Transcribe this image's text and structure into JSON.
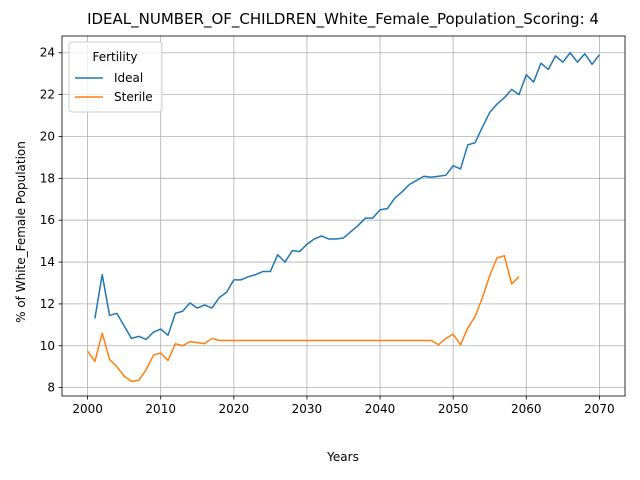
{
  "chart_data": {
    "type": "line",
    "title": "IDEAL_NUMBER_OF_CHILDREN_White_Female_Population_Scoring: 4",
    "xlabel": "Years",
    "ylabel": "% of White_Female Population",
    "xlim": [
      1996.5,
      2073.5
    ],
    "ylim": [
      7.6,
      24.8
    ],
    "xticks": [
      2000,
      2010,
      2020,
      2030,
      2040,
      2050,
      2060,
      2070
    ],
    "yticks": [
      8,
      10,
      12,
      14,
      16,
      18,
      20,
      22,
      24
    ],
    "grid": true,
    "legend": {
      "title": "Fertility",
      "placement": "top-left"
    },
    "series": [
      {
        "name": "Ideal",
        "color": "#1f77b4",
        "x": [
          2001,
          2002,
          2003,
          2004,
          2005,
          2006,
          2007,
          2008,
          2009,
          2010,
          2011,
          2012,
          2013,
          2014,
          2015,
          2016,
          2017,
          2018,
          2019,
          2020,
          2021,
          2022,
          2023,
          2024,
          2025,
          2026,
          2027,
          2028,
          2029,
          2030,
          2031,
          2032,
          2033,
          2034,
          2035,
          2036,
          2037,
          2038,
          2039,
          2040,
          2041,
          2042,
          2043,
          2044,
          2045,
          2046,
          2047,
          2048,
          2049,
          2050,
          2051,
          2052,
          2053,
          2054,
          2055,
          2056,
          2057,
          2058,
          2059,
          2060,
          2061,
          2062,
          2063,
          2064,
          2065,
          2066,
          2067,
          2068,
          2069,
          2070
        ],
        "values": [
          11.3,
          13.4,
          11.45,
          11.55,
          10.95,
          10.35,
          10.45,
          10.3,
          10.65,
          10.8,
          10.5,
          11.55,
          11.65,
          12.05,
          11.8,
          11.95,
          11.8,
          12.3,
          12.55,
          13.15,
          13.15,
          13.3,
          13.4,
          13.55,
          13.55,
          14.35,
          14.0,
          14.55,
          14.5,
          14.85,
          15.1,
          15.25,
          15.1,
          15.1,
          15.15,
          15.45,
          15.75,
          16.1,
          16.1,
          16.5,
          16.55,
          17.05,
          17.35,
          17.7,
          17.9,
          18.1,
          18.05,
          18.1,
          18.15,
          18.6,
          18.45,
          19.6,
          19.7,
          20.45,
          21.15,
          21.55,
          21.85,
          22.25,
          22.0,
          22.95,
          22.6,
          23.5,
          23.2,
          23.85,
          23.55,
          24.0,
          23.55,
          23.95,
          23.45,
          23.9
        ]
      },
      {
        "name": "Sterile",
        "color": "#ff7f0e",
        "x": [
          2000,
          2001,
          2002,
          2003,
          2004,
          2005,
          2006,
          2007,
          2008,
          2009,
          2010,
          2011,
          2012,
          2013,
          2014,
          2015,
          2016,
          2017,
          2018,
          2019,
          2020,
          2021,
          2022,
          2023,
          2024,
          2025,
          2026,
          2027,
          2028,
          2029,
          2030,
          2031,
          2032,
          2033,
          2034,
          2035,
          2036,
          2037,
          2038,
          2039,
          2040,
          2041,
          2042,
          2043,
          2044,
          2045,
          2046,
          2047,
          2048,
          2049,
          2050,
          2051,
          2052,
          2053,
          2054,
          2055,
          2056,
          2057,
          2058,
          2059
        ],
        "values": [
          9.75,
          9.25,
          10.6,
          9.35,
          9.0,
          8.55,
          8.3,
          8.35,
          8.85,
          9.55,
          9.65,
          9.3,
          10.1,
          10.0,
          10.2,
          10.15,
          10.1,
          10.35,
          10.25,
          10.25,
          10.25,
          10.25,
          10.25,
          10.25,
          10.25,
          10.25,
          10.25,
          10.25,
          10.25,
          10.25,
          10.25,
          10.25,
          10.25,
          10.25,
          10.25,
          10.25,
          10.25,
          10.25,
          10.25,
          10.25,
          10.25,
          10.25,
          10.25,
          10.25,
          10.25,
          10.25,
          10.25,
          10.25,
          10.05,
          10.35,
          10.55,
          10.05,
          10.85,
          11.4,
          12.3,
          13.35,
          14.2,
          14.3,
          12.95,
          13.3
        ]
      }
    ]
  }
}
